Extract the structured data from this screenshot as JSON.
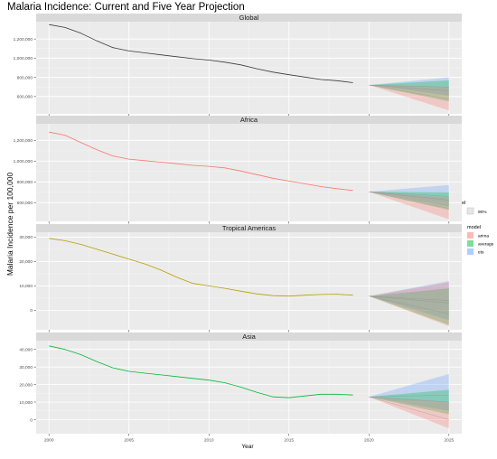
{
  "chart_data": {
    "type": "line",
    "title": "Malaria Incidence: Current and Five Year Projection",
    "xlabel": "Year",
    "ylabel": "Malaria Incidence per 100,000",
    "x_ticks": [
      2000,
      2005,
      2010,
      2015,
      2020,
      2025
    ],
    "xlim": [
      1999.2,
      2025.8
    ],
    "grid": true,
    "legend": {
      "position": "right",
      "level_title": "level",
      "level_items": [
        "90%"
      ],
      "model_title": "model",
      "model_items": [
        "arima",
        "average",
        "ets"
      ]
    },
    "colors": {
      "arima": "#F8766D",
      "average": "#00BA38",
      "ets": "#619CFF",
      "panel_bg": "#EBEBEB",
      "strip_bg": "#D9D9D9",
      "grid_major": "#FFFFFF"
    },
    "panels": [
      {
        "name": "Global",
        "line_color": "#3a3a3a",
        "ylim": [
          420000,
          1380000
        ],
        "y_ticks": [
          600000,
          800000,
          1000000,
          1200000
        ],
        "y_tick_labels": [
          "600,000",
          "800,000",
          "1,000,000",
          "1,200,000"
        ],
        "x": [
          2000,
          2001,
          2002,
          2003,
          2004,
          2005,
          2006,
          2007,
          2008,
          2009,
          2010,
          2011,
          2012,
          2013,
          2014,
          2015,
          2016,
          2017,
          2018,
          2019
        ],
        "values": [
          1350000,
          1320000,
          1260000,
          1180000,
          1110000,
          1075000,
          1055000,
          1035000,
          1015000,
          995000,
          980000,
          958000,
          930000,
          890000,
          855000,
          828000,
          803000,
          778000,
          765000,
          745000
        ],
        "forecast": {
          "x": [
            2020,
            2025
          ],
          "start": 720000,
          "arima": {
            "mean": 575000,
            "low": 455000,
            "high": 700000
          },
          "average": {
            "mean": 660000,
            "low": 550000,
            "high": 770000
          },
          "ets": {
            "mean": 700000,
            "low": 610000,
            "high": 800000
          }
        }
      },
      {
        "name": "Africa",
        "line_color": "#F8766D",
        "ylim": [
          420000,
          1360000
        ],
        "y_ticks": [
          600000,
          800000,
          1000000,
          1200000
        ],
        "y_tick_labels": [
          "600,000",
          "800,000",
          "1,000,000",
          "1,200,000"
        ],
        "x": [
          2000,
          2001,
          2002,
          2003,
          2004,
          2005,
          2006,
          2007,
          2008,
          2009,
          2010,
          2011,
          2012,
          2013,
          2014,
          2015,
          2016,
          2017,
          2018,
          2019
        ],
        "values": [
          1280000,
          1250000,
          1180000,
          1110000,
          1050000,
          1020000,
          1005000,
          990000,
          975000,
          960000,
          950000,
          935000,
          905000,
          870000,
          835000,
          808000,
          782000,
          755000,
          735000,
          718000
        ],
        "forecast": {
          "x": [
            2020,
            2025
          ],
          "start": 705000,
          "arima": {
            "mean": 545000,
            "low": 440000,
            "high": 650000
          },
          "average": {
            "mean": 625000,
            "low": 530000,
            "high": 700000
          },
          "ets": {
            "mean": 660000,
            "low": 560000,
            "high": 770000
          }
        }
      },
      {
        "name": "Tropical Americas",
        "line_color": "#B79F00",
        "ylim": [
          -8000,
          32000
        ],
        "y_ticks": [
          0,
          10000,
          20000,
          30000
        ],
        "y_tick_labels": [
          "0",
          "10,000",
          "20,000",
          "30,000"
        ],
        "x": [
          2000,
          2001,
          2002,
          2003,
          2004,
          2005,
          2006,
          2007,
          2008,
          2009,
          2010,
          2011,
          2012,
          2013,
          2014,
          2015,
          2016,
          2017,
          2018,
          2019
        ],
        "values": [
          29500,
          28500,
          27000,
          25000,
          23000,
          21000,
          19000,
          16500,
          13500,
          11000,
          10000,
          9000,
          7800,
          6700,
          6000,
          5800,
          6200,
          6500,
          6600,
          6200
        ],
        "forecast": {
          "x": [
            2020,
            2025
          ],
          "start": 5800,
          "arima": {
            "mean": -1500,
            "low": -6500,
            "high": 11500
          },
          "average": {
            "mean": 3000,
            "low": -6000,
            "high": 9000
          },
          "ets": {
            "mean": 4000,
            "low": -4000,
            "high": 12000
          }
        }
      },
      {
        "name": "Asia",
        "line_color": "#00BA38",
        "ylim": [
          -8000,
          45000
        ],
        "y_ticks": [
          0,
          10000,
          20000,
          30000,
          40000
        ],
        "y_tick_labels": [
          "0",
          "10,000",
          "20,000",
          "30,000",
          "40,000"
        ],
        "x": [
          2000,
          2001,
          2002,
          2003,
          2004,
          2005,
          2006,
          2007,
          2008,
          2009,
          2010,
          2011,
          2012,
          2013,
          2014,
          2015,
          2016,
          2017,
          2018,
          2019
        ],
        "values": [
          42000,
          40000,
          37000,
          33000,
          29500,
          27500,
          26500,
          25500,
          24500,
          23500,
          22500,
          21000,
          18500,
          15500,
          13000,
          12500,
          13500,
          14500,
          14500,
          14000
        ],
        "forecast": {
          "x": [
            2020,
            2025
          ],
          "start": 13000,
          "arima": {
            "mean": 0,
            "low": -5000,
            "high": 10000
          },
          "average": {
            "mean": 10000,
            "low": 3000,
            "high": 17000
          },
          "ets": {
            "mean": 14000,
            "low": 5000,
            "high": 26000
          }
        }
      }
    ]
  }
}
